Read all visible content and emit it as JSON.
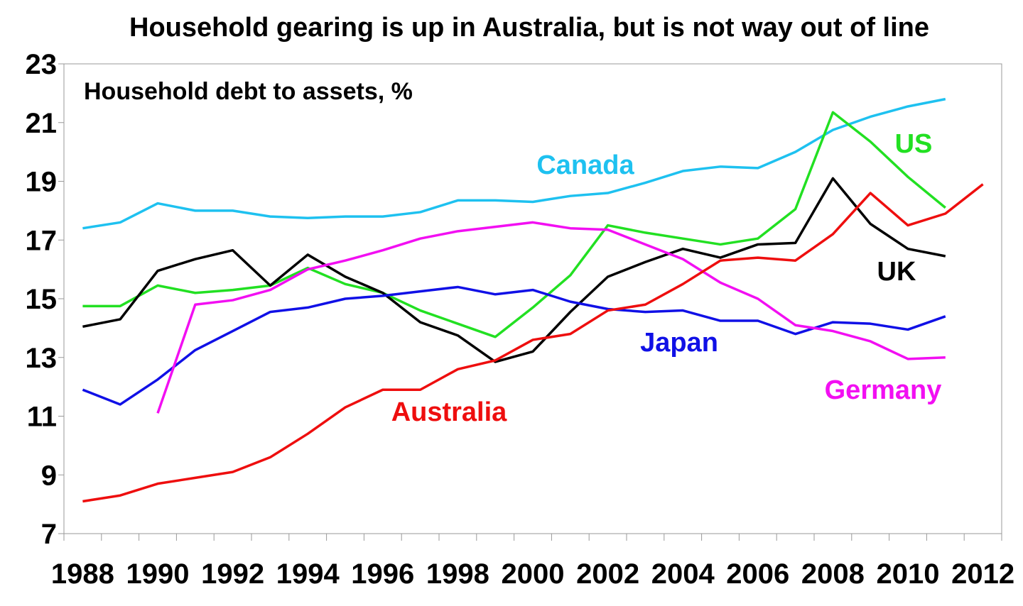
{
  "chart_data": {
    "type": "line",
    "title": "Household gearing is up in Australia, but is not way out of line",
    "subtitle": "Household debt to assets, %",
    "xlabel": "",
    "ylabel": "",
    "xlim": [
      1987.5,
      2012.5
    ],
    "ylim": [
      7,
      23
    ],
    "yticks": [
      7,
      9,
      11,
      13,
      15,
      17,
      19,
      21,
      23
    ],
    "xticks": [
      1988,
      1990,
      1992,
      1994,
      1996,
      1998,
      2000,
      2002,
      2004,
      2006,
      2008,
      2010,
      2012
    ],
    "grid": false,
    "legend": "inline-labels",
    "series": [
      {
        "name": "Canada",
        "color": "#1EC1F0",
        "x": [
          1988,
          1989,
          1990,
          1991,
          1992,
          1993,
          1994,
          1995,
          1996,
          1997,
          1998,
          1999,
          2000,
          2001,
          2002,
          2003,
          2004,
          2005,
          2006,
          2007,
          2008,
          2009,
          2010,
          2011
        ],
        "values": [
          17.4,
          17.6,
          18.25,
          18.0,
          18.0,
          17.8,
          17.75,
          17.8,
          17.8,
          17.95,
          18.35,
          18.35,
          18.3,
          18.5,
          18.6,
          18.95,
          19.35,
          19.5,
          19.45,
          20.0,
          20.75,
          21.2,
          21.55,
          21.8
        ]
      },
      {
        "name": "US",
        "color": "#22E022",
        "x": [
          1988,
          1989,
          1990,
          1991,
          1992,
          1993,
          1994,
          1995,
          1996,
          1997,
          1998,
          1999,
          2000,
          2001,
          2002,
          2003,
          2004,
          2005,
          2006,
          2007,
          2008,
          2009,
          2010,
          2011
        ],
        "values": [
          14.75,
          14.75,
          15.45,
          15.2,
          15.3,
          15.45,
          16.05,
          15.5,
          15.2,
          14.6,
          14.15,
          13.7,
          14.7,
          15.8,
          17.5,
          17.25,
          17.05,
          16.85,
          17.05,
          18.05,
          21.35,
          20.35,
          19.15,
          18.1
        ]
      },
      {
        "name": "UK",
        "color": "#000000",
        "x": [
          1988,
          1989,
          1990,
          1991,
          1992,
          1993,
          1994,
          1995,
          1996,
          1997,
          1998,
          1999,
          2000,
          2001,
          2002,
          2003,
          2004,
          2005,
          2006,
          2007,
          2008,
          2009,
          2010,
          2011
        ],
        "values": [
          14.05,
          14.3,
          15.95,
          16.35,
          16.65,
          15.45,
          16.5,
          15.75,
          15.2,
          14.2,
          13.75,
          12.85,
          13.2,
          14.55,
          15.75,
          16.25,
          16.7,
          16.4,
          16.85,
          16.9,
          19.1,
          17.55,
          16.7,
          16.45
        ]
      },
      {
        "name": "Japan",
        "color": "#1010E6",
        "x": [
          1988,
          1989,
          1990,
          1991,
          1992,
          1993,
          1994,
          1995,
          1996,
          1997,
          1998,
          1999,
          2000,
          2001,
          2002,
          2003,
          2004,
          2005,
          2006,
          2007,
          2008,
          2009,
          2010,
          2011
        ],
        "values": [
          11.9,
          11.4,
          12.25,
          13.25,
          13.9,
          14.55,
          14.7,
          15.0,
          15.1,
          15.25,
          15.4,
          15.15,
          15.3,
          14.9,
          14.65,
          14.55,
          14.6,
          14.25,
          14.25,
          13.8,
          14.2,
          14.15,
          13.95,
          14.4
        ]
      },
      {
        "name": "Germany",
        "color": "#F20FF2",
        "x": [
          1990,
          1991,
          1992,
          1993,
          1994,
          1995,
          1996,
          1997,
          1998,
          1999,
          2000,
          2001,
          2002,
          2003,
          2004,
          2005,
          2006,
          2007,
          2008,
          2009,
          2010,
          2011
        ],
        "values": [
          11.1,
          14.8,
          14.95,
          15.3,
          16.0,
          16.3,
          16.65,
          17.05,
          17.3,
          17.45,
          17.6,
          17.4,
          17.35,
          16.85,
          16.35,
          15.55,
          15.0,
          14.1,
          13.9,
          13.55,
          12.95,
          13.0
        ]
      },
      {
        "name": "Australia",
        "color": "#EE0E0E",
        "x": [
          1988,
          1989,
          1990,
          1991,
          1992,
          1993,
          1994,
          1995,
          1996,
          1997,
          1998,
          1999,
          2000,
          2001,
          2002,
          2003,
          2004,
          2005,
          2006,
          2007,
          2008,
          2009,
          2010,
          2011,
          2012
        ],
        "values": [
          8.1,
          8.3,
          8.7,
          8.9,
          9.1,
          9.6,
          10.4,
          11.3,
          11.9,
          11.9,
          12.6,
          12.9,
          13.6,
          13.8,
          14.6,
          14.8,
          15.5,
          16.3,
          16.4,
          16.3,
          17.2,
          18.6,
          17.5,
          17.9,
          18.9
        ]
      }
    ]
  }
}
